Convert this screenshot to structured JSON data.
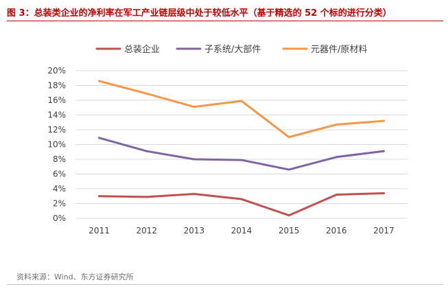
{
  "header": {
    "title": "图 3：总装类企业的净利率在军工产业链层级中处于较低水平（基于精选的 52 个标的进行分类）"
  },
  "footer": {
    "source": "资料来源：Wind、东方证券研究所"
  },
  "chart_data": {
    "type": "line",
    "title": "",
    "xlabel": "",
    "ylabel": "",
    "categories": [
      "2011",
      "2012",
      "2013",
      "2014",
      "2015",
      "2016",
      "2017"
    ],
    "y_ticks": [
      "0%",
      "2%",
      "4%",
      "6%",
      "8%",
      "10%",
      "12%",
      "14%",
      "16%",
      "18%",
      "20%"
    ],
    "ylim": [
      0,
      20
    ],
    "grid": true,
    "legend_position": "top-center",
    "series": [
      {
        "name": "总装企业",
        "color": "#c0504d",
        "values": [
          3.0,
          2.9,
          3.3,
          2.6,
          0.4,
          3.2,
          3.4
        ]
      },
      {
        "name": "子系统/大部件",
        "color": "#8064a2",
        "values": [
          10.9,
          9.1,
          8.0,
          7.9,
          6.6,
          8.3,
          9.1
        ]
      },
      {
        "name": "元器件/原材料",
        "color": "#f79646",
        "values": [
          18.6,
          16.9,
          15.1,
          15.9,
          11.0,
          12.7,
          13.2
        ]
      }
    ]
  }
}
